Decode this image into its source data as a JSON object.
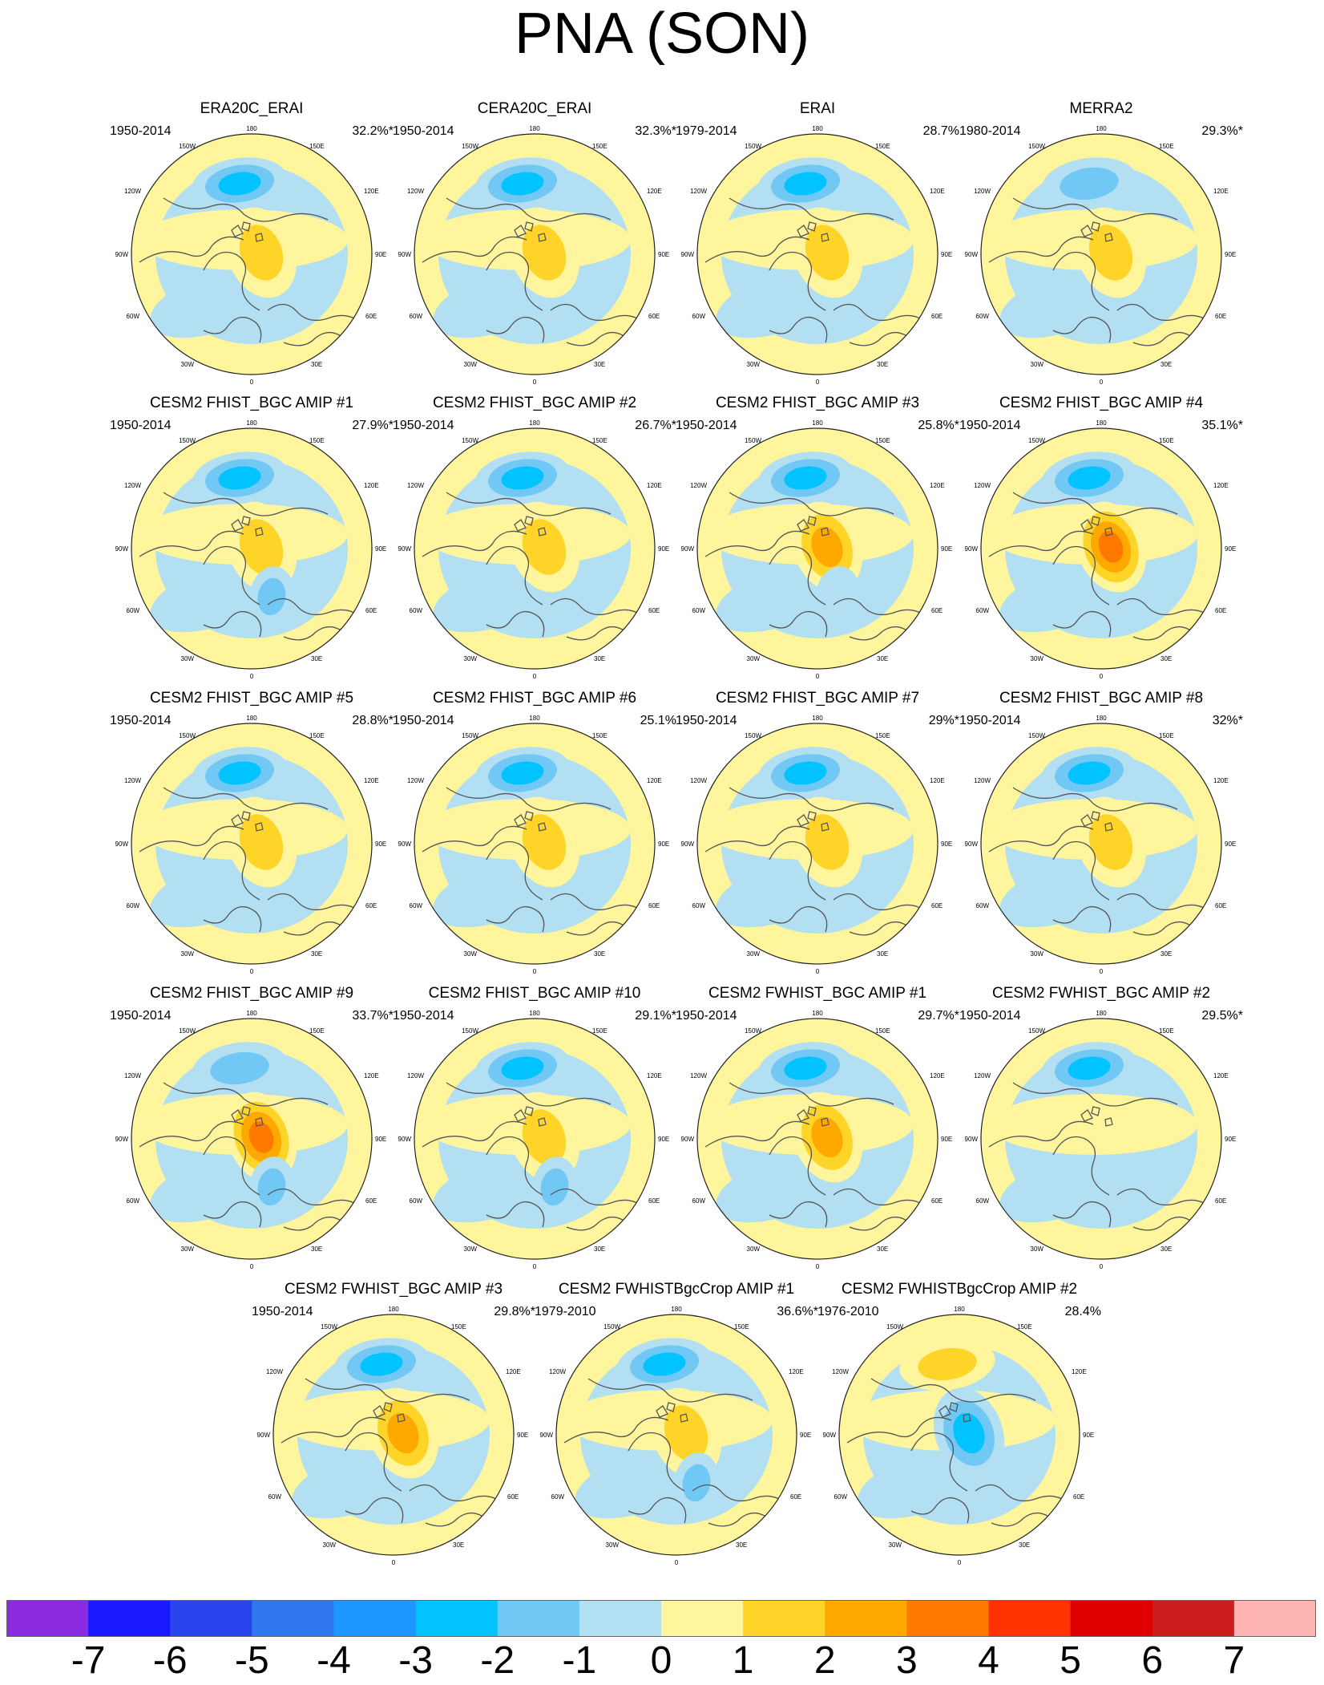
{
  "title": "PNA (SON)",
  "colors": {
    "land_outline": "#555555",
    "map_edge": "#222222"
  },
  "maps": [
    {
      "title": "ERA20C_ERAI",
      "period": "1950-2014",
      "pct": "32.2%*",
      "pattern": [
        -3,
        2,
        0
      ]
    },
    {
      "title": "CERA20C_ERAI",
      "period": "1950-2014",
      "pct": "32.3%*",
      "pattern": [
        -3,
        2,
        0
      ]
    },
    {
      "title": "ERAI",
      "period": "1979-2014",
      "pct": "28.7%",
      "pattern": [
        -3,
        2,
        0
      ]
    },
    {
      "title": "MERRA2",
      "period": "1980-2014",
      "pct": "29.3%*",
      "pattern": [
        -2,
        2,
        0
      ]
    },
    {
      "title": "CESM2 FHIST_BGC AMIP #1",
      "period": "1950-2014",
      "pct": "27.9%*",
      "pattern": [
        -3,
        2,
        -2
      ]
    },
    {
      "title": "CESM2 FHIST_BGC AMIP #2",
      "period": "1950-2014",
      "pct": "26.7%*",
      "pattern": [
        -3,
        2,
        0
      ]
    },
    {
      "title": "CESM2 FHIST_BGC AMIP #3",
      "period": "1950-2014",
      "pct": "25.8%*",
      "pattern": [
        -3,
        3,
        -1
      ]
    },
    {
      "title": "CESM2 FHIST_BGC AMIP #4",
      "period": "1950-2014",
      "pct": "35.1%*",
      "pattern": [
        -3,
        4,
        0
      ]
    },
    {
      "title": "CESM2 FHIST_BGC AMIP #5",
      "period": "1950-2014",
      "pct": "28.8%*",
      "pattern": [
        -3,
        2,
        0
      ]
    },
    {
      "title": "CESM2 FHIST_BGC AMIP #6",
      "period": "1950-2014",
      "pct": "25.1%",
      "pattern": [
        -3,
        2,
        0
      ]
    },
    {
      "title": "CESM2 FHIST_BGC AMIP #7",
      "period": "1950-2014",
      "pct": "29%*",
      "pattern": [
        -3,
        2,
        0
      ]
    },
    {
      "title": "CESM2 FHIST_BGC AMIP #8",
      "period": "1950-2014",
      "pct": "32%*",
      "pattern": [
        -3,
        2,
        0
      ]
    },
    {
      "title": "CESM2 FHIST_BGC AMIP #9",
      "period": "1950-2014",
      "pct": "33.7%*",
      "pattern": [
        -2,
        4,
        -2
      ]
    },
    {
      "title": "CESM2 FHIST_BGC AMIP #10",
      "period": "1950-2014",
      "pct": "29.1%*",
      "pattern": [
        -3,
        2,
        -2
      ]
    },
    {
      "title": "CESM2 FWHIST_BGC AMIP #1",
      "period": "1950-2014",
      "pct": "29.7%*",
      "pattern": [
        -3,
        3,
        0
      ]
    },
    {
      "title": "CESM2 FWHIST_BGC AMIP #2",
      "period": "1950-2014",
      "pct": "29.5%*",
      "pattern": [
        -3,
        0,
        -1
      ]
    },
    {
      "title": "CESM2 FWHIST_BGC AMIP #3",
      "period": "1950-2014",
      "pct": "29.8%*",
      "pattern": [
        -3,
        3,
        0
      ]
    },
    {
      "title": "CESM2 FWHISTBgcCrop AMIP #1",
      "period": "1979-2010",
      "pct": "36.6%*",
      "pattern": [
        -3,
        2,
        -2
      ]
    },
    {
      "title": "CESM2 FWHISTBgcCrop AMIP #2",
      "period": "1976-2010",
      "pct": "28.4%",
      "pattern": [
        2,
        -3,
        0
      ]
    }
  ],
  "map_labels": {
    "lon_180": "180",
    "lon_150w": "150W",
    "lon_150e": "150E",
    "lon_120w": "120W",
    "lon_120e": "120E",
    "lon_90w": "90W",
    "lon_90e": "90E",
    "lon_60w": "60W",
    "lon_60e": "60E",
    "lon_30w": "30W",
    "lon_30e": "30E",
    "lon_0": "0"
  },
  "colorbar": {
    "colors": [
      "#8a2be2",
      "#1a1aff",
      "#2a45ee",
      "#3076ec",
      "#1e96ff",
      "#00c3ff",
      "#72c8f4",
      "#b3dff2",
      "#fff59c",
      "#ffd428",
      "#ffa800",
      "#ff7800",
      "#ff3200",
      "#e00000",
      "#cd1e1e",
      "#ffb4b4"
    ],
    "ticks": [
      "-7",
      "-6",
      "-5",
      "-4",
      "-3",
      "-2",
      "-1",
      "0",
      "1",
      "2",
      "3",
      "4",
      "5",
      "6",
      "7"
    ]
  }
}
